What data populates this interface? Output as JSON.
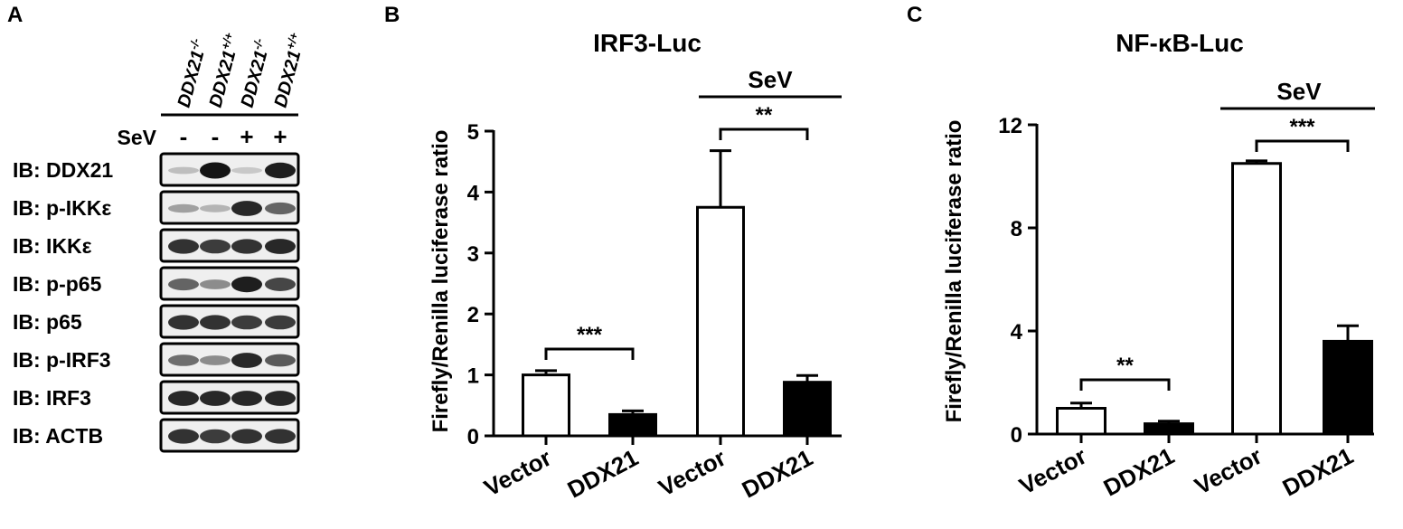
{
  "panel_a": {
    "letter": "A",
    "genotypes": [
      {
        "base": "DDX21",
        "sup": "-/-"
      },
      {
        "base": "DDX21",
        "sup": "+/+"
      },
      {
        "base": "DDX21",
        "sup": "-/-"
      },
      {
        "base": "DDX21",
        "sup": "+/+"
      }
    ],
    "sev_label": "SeV",
    "sev_signs": [
      "-",
      "-",
      "+",
      "+"
    ],
    "blots": [
      {
        "label": "IB: DDX21",
        "bands": [
          0.15,
          1.0,
          0.1,
          0.95
        ]
      },
      {
        "label": "IB: p-IKKε",
        "bands": [
          0.3,
          0.2,
          0.9,
          0.6
        ]
      },
      {
        "label": "IB: IKKε",
        "bands": [
          0.85,
          0.8,
          0.85,
          0.9
        ]
      },
      {
        "label": "IB: p-p65",
        "bands": [
          0.6,
          0.4,
          0.95,
          0.75
        ]
      },
      {
        "label": "IB: p65",
        "bands": [
          0.85,
          0.85,
          0.8,
          0.8
        ]
      },
      {
        "label": "IB: p-IRF3",
        "bands": [
          0.55,
          0.4,
          0.9,
          0.65
        ]
      },
      {
        "label": "IB: IRF3",
        "bands": [
          0.9,
          0.9,
          0.9,
          0.9
        ]
      },
      {
        "label": "IB: ACTB",
        "bands": [
          0.85,
          0.8,
          0.85,
          0.85
        ]
      }
    ]
  },
  "chart_data": [
    {
      "panel": "B",
      "type": "bar",
      "title": "IRF3-Luc",
      "ylabel": "Firefly/Renilla luciferase ratio",
      "xlabel": "",
      "categories": [
        "Vector",
        "DDX21",
        "Vector",
        "DDX21"
      ],
      "values": [
        1.0,
        0.35,
        3.75,
        0.88
      ],
      "errors": [
        0.07,
        0.06,
        0.93,
        0.11
      ],
      "bar_fill": [
        "#ffffff",
        "#000000",
        "#ffffff",
        "#000000"
      ],
      "ylim": [
        0,
        5
      ],
      "yticks": [
        "0",
        "1",
        "2",
        "3",
        "4",
        "5"
      ],
      "group_label": "SeV",
      "significance": [
        {
          "from": 0,
          "to": 1,
          "label": "***"
        },
        {
          "from": 2,
          "to": 3,
          "label": "**"
        }
      ]
    },
    {
      "panel": "C",
      "type": "bar",
      "title": "NF-κB-Luc",
      "ylabel": "Firefly/Renilla luciferase ratio",
      "xlabel": "",
      "categories": [
        "Vector",
        "DDX21",
        "Vector",
        "DDX21"
      ],
      "values": [
        1.0,
        0.4,
        10.5,
        3.6
      ],
      "errors": [
        0.2,
        0.1,
        0.1,
        0.6
      ],
      "bar_fill": [
        "#ffffff",
        "#000000",
        "#ffffff",
        "#000000"
      ],
      "ylim": [
        0,
        12
      ],
      "yticks": [
        "0",
        "4",
        "8",
        "12"
      ],
      "group_label": "SeV",
      "significance": [
        {
          "from": 0,
          "to": 1,
          "label": "**"
        },
        {
          "from": 2,
          "to": 3,
          "label": "***"
        }
      ]
    }
  ]
}
